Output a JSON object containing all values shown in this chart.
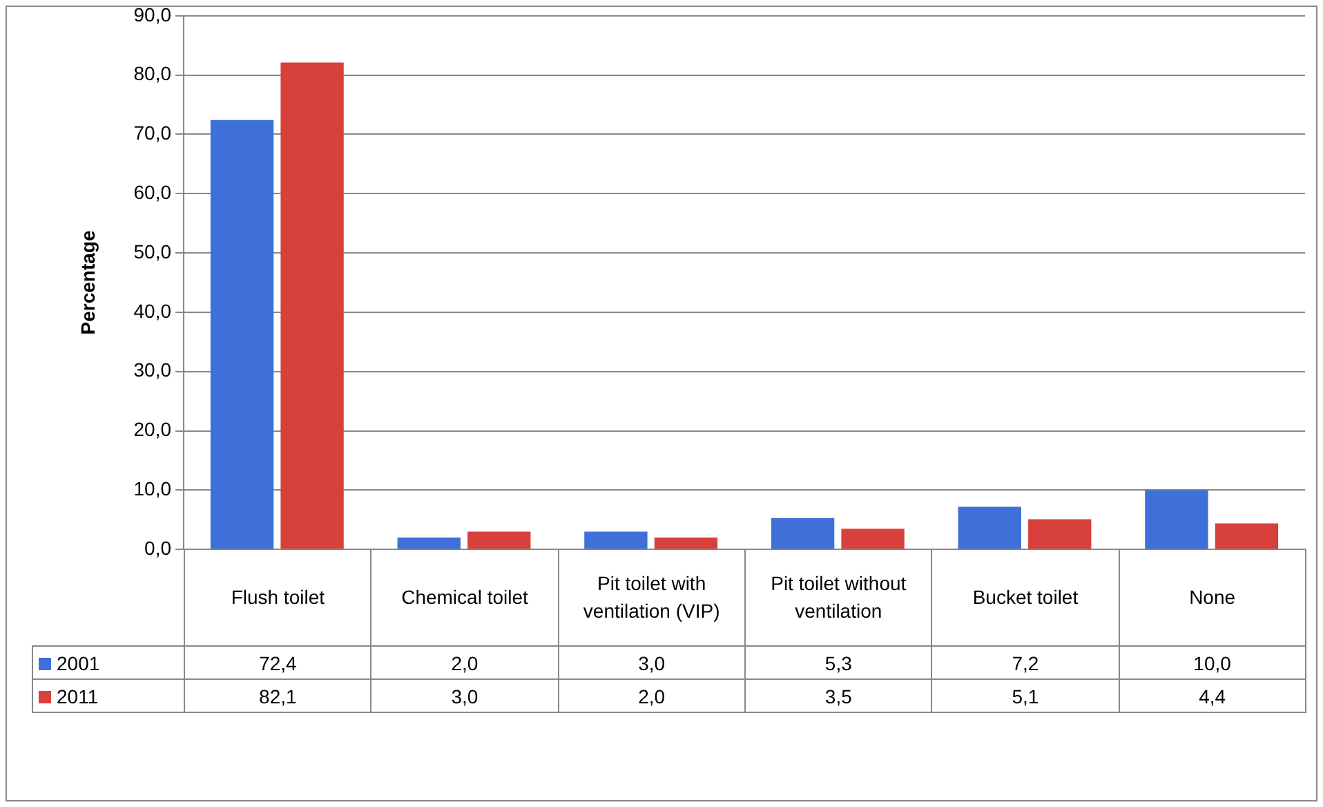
{
  "chart_data": {
    "type": "bar",
    "ylabel": "Percentage",
    "categories": [
      "Flush toilet",
      "Chemical toilet",
      "Pit toilet with ventilation (VIP)",
      "Pit toilet without ventilation",
      "Bucket toilet",
      "None"
    ],
    "series": [
      {
        "name": "2001",
        "color": "#3f6fd8",
        "values": [
          72.4,
          2.0,
          3.0,
          5.3,
          7.2,
          10.0
        ],
        "value_labels": [
          "72,4",
          "2,0",
          "3,0",
          "5,3",
          "7,2",
          "10,0"
        ]
      },
      {
        "name": "2011",
        "color": "#d8403c",
        "values": [
          82.1,
          3.0,
          2.0,
          3.5,
          5.1,
          4.4
        ],
        "value_labels": [
          "82,1",
          "3,0",
          "2,0",
          "3,5",
          "5,1",
          "4,4"
        ]
      }
    ],
    "ylim": [
      0,
      90
    ],
    "yticks": [
      {
        "value": 0,
        "label": "0,0"
      },
      {
        "value": 10,
        "label": "10,0"
      },
      {
        "value": 20,
        "label": "20,0"
      },
      {
        "value": 30,
        "label": "30,0"
      },
      {
        "value": 40,
        "label": "40,0"
      },
      {
        "value": 50,
        "label": "50,0"
      },
      {
        "value": 60,
        "label": "60,0"
      },
      {
        "value": 70,
        "label": "70,0"
      },
      {
        "value": 80,
        "label": "80,0"
      },
      {
        "value": 90,
        "label": "90,0"
      }
    ],
    "grid": "y",
    "legend": "bottom"
  }
}
